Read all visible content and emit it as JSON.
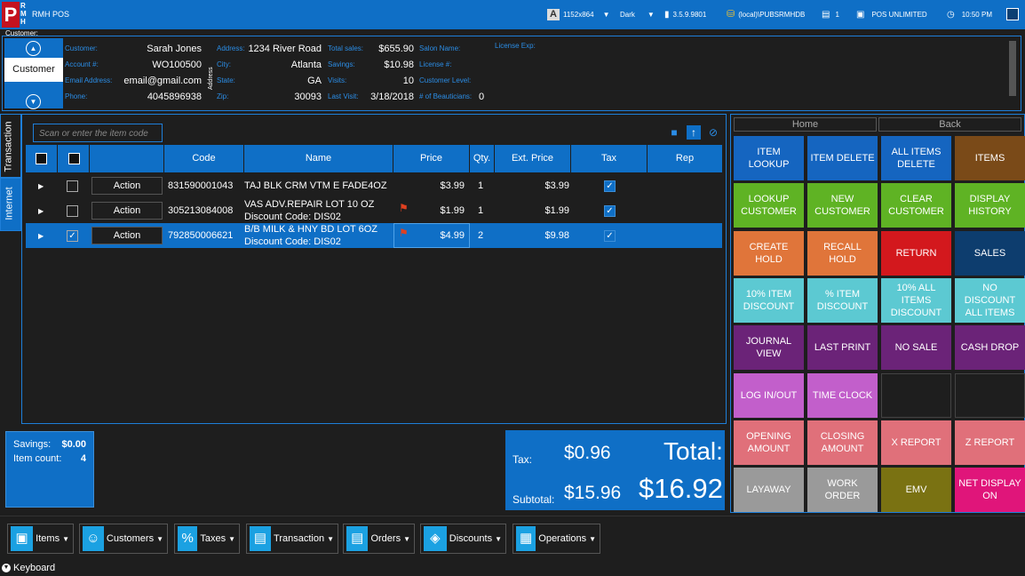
{
  "app": {
    "logo_letter": "P",
    "logo_letters": "R\nM\nH",
    "title": "RMH POS"
  },
  "topbar": {
    "resolution": "1152x864",
    "resolution_icon": "font-icon",
    "theme": "Dark",
    "version": "3.5.9.9801",
    "database": "(local)\\PUBSRMHDB",
    "register": "1",
    "store": "POS UNLIMITED",
    "time": "10:50 PM"
  },
  "customer": {
    "section_label": "Customer:",
    "tab_label": "Customer",
    "fields": {
      "customer_label": "Customer:",
      "customer_value": "Sarah Jones",
      "account_label": "Account #:",
      "account_value": "WO100500",
      "email_label": "Email Address:",
      "email_value": "email@gmail.com",
      "phone_label": "Phone:",
      "phone_value": "4045896938",
      "address_vert": "Address",
      "address_label": "Address:",
      "address_value": "1234 River Road",
      "city_label": "City:",
      "city_value": "Atlanta",
      "state_label": "State:",
      "state_value": "GA",
      "zip_label": "Zip:",
      "zip_value": "30093",
      "total_sales_label": "Total sales:",
      "total_sales_value": "$655.90",
      "savings_label": "Savings:",
      "savings_value": "$10.98",
      "visits_label": "Visits:",
      "visits_value": "10",
      "last_visit_label": "Last Visit:",
      "last_visit_value": "3/18/2018",
      "salon_label": "Salon Name:",
      "license_exp_label": "License Exp:",
      "license_label": "License #:",
      "level_label": "Customer Level:",
      "beauticians_label": "# of Beauticians:",
      "beauticians_value": "0"
    }
  },
  "side_tabs": {
    "transaction": "Transaction",
    "internet": "Internet"
  },
  "scan": {
    "placeholder": "Scan or enter the item code"
  },
  "grid": {
    "headers": {
      "code": "Code",
      "name": "Name",
      "price": "Price",
      "qty": "Qty.",
      "ext": "Ext. Price",
      "tax": "Tax",
      "rep": "Rep"
    },
    "rows": [
      {
        "action": "Action",
        "code": "831590001043",
        "name": "TAJ BLK CRM  VTM E FADE4OZ",
        "discount": "",
        "price": "$3.99",
        "qty": "1",
        "ext": "$3.99",
        "checked": false,
        "selected": false,
        "flag": false
      },
      {
        "action": "Action",
        "code": "305213084008",
        "name": "VAS ADV.REPAIR LOT 10 OZ",
        "discount": "Discount Code: DIS02",
        "price": "$1.99",
        "qty": "1",
        "ext": "$1.99",
        "checked": false,
        "selected": false,
        "flag": true
      },
      {
        "action": "Action",
        "code": "792850006621",
        "name": "B/B MILK & HNY BD LOT 6OZ",
        "discount": "Discount Code: DIS02",
        "price": "$4.99",
        "qty": "2",
        "ext": "$9.98",
        "checked": true,
        "selected": true,
        "flag": true
      }
    ]
  },
  "summary": {
    "savings_label": "Savings:",
    "savings_value": "$0.00",
    "item_count_label": "Item count:",
    "item_count_value": "4",
    "tax_label": "Tax:",
    "tax_value": "$0.96",
    "total_label": "Total:",
    "subtotal_label": "Subtotal:",
    "subtotal_value": "$15.96",
    "total_value": "$16.92"
  },
  "right_panel": {
    "home_label": "Home",
    "back_label": "Back",
    "tiles": [
      {
        "label": "ITEM LOOKUP",
        "color": "#1565c0"
      },
      {
        "label": "ITEM DELETE",
        "color": "#1565c0"
      },
      {
        "label": "ALL ITEMS DELETE",
        "color": "#1565c0"
      },
      {
        "label": "ITEMS",
        "color": "#7a4a18"
      },
      {
        "label": "LOOKUP CUSTOMER",
        "color": "#5fb324"
      },
      {
        "label": "NEW CUSTOMER",
        "color": "#5fb324"
      },
      {
        "label": "CLEAR CUSTOMER",
        "color": "#5fb324"
      },
      {
        "label": "DISPLAY HISTORY",
        "color": "#5fb324"
      },
      {
        "label": "CREATE HOLD",
        "color": "#e0753a"
      },
      {
        "label": "RECALL HOLD",
        "color": "#e0753a"
      },
      {
        "label": "RETURN",
        "color": "#d3181d"
      },
      {
        "label": "SALES",
        "color": "#0d3d6e"
      },
      {
        "label": "10% ITEM DISCOUNT",
        "color": "#5cc9d2"
      },
      {
        "label": "% ITEM DISCOUNT",
        "color": "#5cc9d2"
      },
      {
        "label": "10% ALL ITEMS DISCOUNT",
        "color": "#5cc9d2"
      },
      {
        "label": "NO DISCOUNT ALL ITEMS",
        "color": "#5cc9d2"
      },
      {
        "label": "JOURNAL VIEW",
        "color": "#6b2378"
      },
      {
        "label": "LAST PRINT",
        "color": "#6b2378"
      },
      {
        "label": "NO SALE",
        "color": "#6b2378"
      },
      {
        "label": "CASH DROP",
        "color": "#6b2378"
      },
      {
        "label": "LOG IN/OUT",
        "color": "#c25fcb"
      },
      {
        "label": "TIME CLOCK",
        "color": "#c25fcb"
      },
      {
        "label": "",
        "color": "#1e1e1e"
      },
      {
        "label": "",
        "color": "#1e1e1e"
      },
      {
        "label": "OPENING AMOUNT",
        "color": "#e0707a"
      },
      {
        "label": "CLOSING AMOUNT",
        "color": "#e0707a"
      },
      {
        "label": "X REPORT",
        "color": "#e0707a"
      },
      {
        "label": "Z REPORT",
        "color": "#e0707a"
      },
      {
        "label": "LAYAWAY",
        "color": "#9a9a9a"
      },
      {
        "label": "WORK ORDER",
        "color": "#9a9a9a"
      },
      {
        "label": "EMV",
        "color": "#7a7212"
      },
      {
        "label": "NET DISPLAY ON",
        "color": "#e0157a"
      }
    ]
  },
  "footer": {
    "buttons": [
      {
        "label": "Items",
        "icon": "box-icon"
      },
      {
        "label": "Customers",
        "icon": "person-icon"
      },
      {
        "label": "Taxes",
        "icon": "percent-icon"
      },
      {
        "label": "Transaction",
        "icon": "bag-icon"
      },
      {
        "label": "Orders",
        "icon": "bag-icon"
      },
      {
        "label": "Discounts",
        "icon": "tag-icon"
      },
      {
        "label": "Operations",
        "icon": "register-icon"
      }
    ],
    "keyboard_label": "Keyboard"
  }
}
